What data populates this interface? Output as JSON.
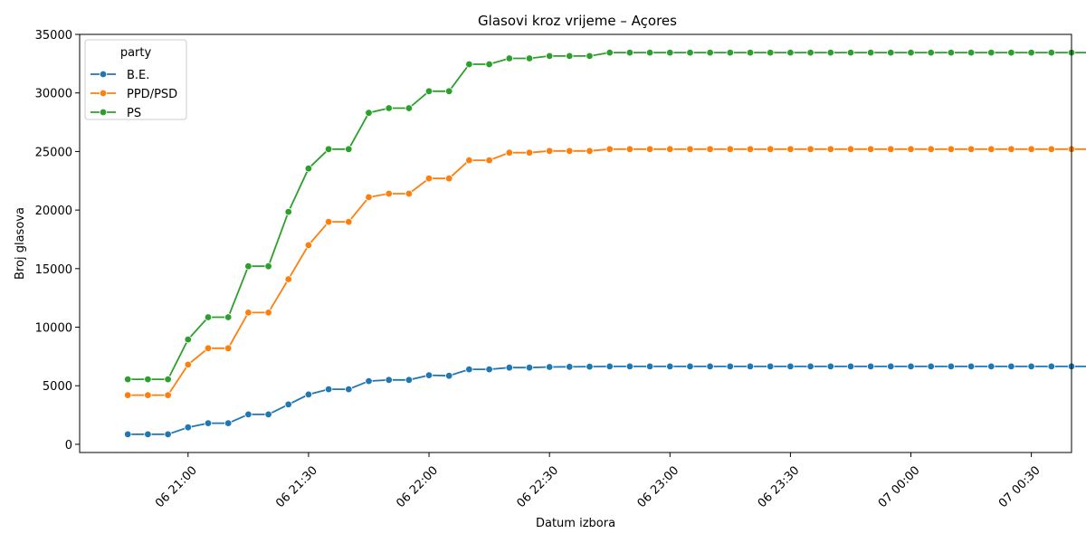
{
  "chart_data": {
    "type": "line",
    "title": "Glasovi kroz vrijeme – Açores",
    "xlabel": "Datum izbora",
    "ylabel": "Broj glasova",
    "x_start": "06 20:45",
    "x_step_minutes": 5,
    "xlim": [
      "06 20:33",
      "07 00:40"
    ],
    "xticks": [
      "06 21:00",
      "06 21:30",
      "06 22:00",
      "06 22:30",
      "06 23:00",
      "06 23:30",
      "07 00:00",
      "07 00:30"
    ],
    "ylim": [
      -700,
      35000
    ],
    "yticks": [
      0,
      5000,
      10000,
      15000,
      20000,
      25000,
      30000,
      35000
    ],
    "grid": false,
    "legend": {
      "title": "party",
      "placement": "top-left"
    },
    "series": [
      {
        "name": "B.E.",
        "color": "#1f77b4",
        "values": [
          850,
          850,
          850,
          1450,
          1800,
          1800,
          2550,
          2550,
          3400,
          4250,
          4700,
          4700,
          5400,
          5500,
          5500,
          5900,
          5850,
          6400,
          6400,
          6550,
          6550,
          6600,
          6620,
          6630,
          6650,
          6650,
          6650,
          6650,
          6650,
          6650,
          6650,
          6650,
          6650,
          6650,
          6650,
          6650,
          6650,
          6650,
          6650,
          6650,
          6650,
          6650,
          6650,
          6650,
          6650,
          6650,
          6650,
          6650,
          6650
        ]
      },
      {
        "name": "PPD/PSD",
        "color": "#ff7f0e",
        "values": [
          4200,
          4200,
          4200,
          6800,
          8200,
          8200,
          11250,
          11250,
          14100,
          17000,
          19000,
          19000,
          21100,
          21400,
          21400,
          22700,
          22700,
          24250,
          24250,
          24900,
          24900,
          25050,
          25050,
          25050,
          25200,
          25200,
          25200,
          25200,
          25200,
          25200,
          25200,
          25200,
          25200,
          25200,
          25200,
          25200,
          25200,
          25200,
          25200,
          25200,
          25200,
          25200,
          25200,
          25200,
          25200,
          25200,
          25200,
          25200,
          25200
        ]
      },
      {
        "name": "PS",
        "color": "#2ca02c",
        "values": [
          5550,
          5550,
          5550,
          8950,
          10850,
          10850,
          15200,
          15200,
          19850,
          23550,
          25200,
          25200,
          28300,
          28700,
          28700,
          30150,
          30150,
          32450,
          32450,
          32950,
          32950,
          33150,
          33150,
          33150,
          33450,
          33450,
          33450,
          33450,
          33450,
          33450,
          33450,
          33450,
          33450,
          33450,
          33450,
          33450,
          33450,
          33450,
          33450,
          33450,
          33450,
          33450,
          33450,
          33450,
          33450,
          33450,
          33450,
          33450,
          33450
        ]
      }
    ]
  }
}
